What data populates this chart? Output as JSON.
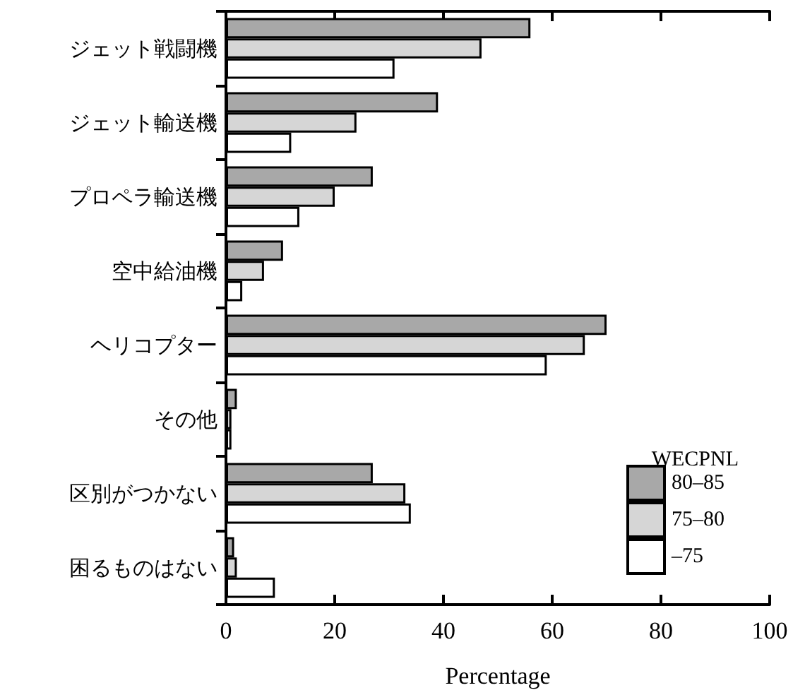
{
  "chart_data": {
    "type": "bar",
    "orientation": "horizontal",
    "xlabel": "Percentage",
    "legend_title": "WECPNL",
    "legend": "bottom right",
    "categories": [
      "ジェット戦闘機",
      "ジェット輸送機",
      "プロペラ輸送機",
      "空中給油機",
      "ヘリコプター",
      "その他",
      "区別がつかない",
      "困るものはない"
    ],
    "series": [
      {
        "name": "80–85",
        "color": "#a8a8a8",
        "values": [
          56,
          39,
          27,
          10.5,
          70,
          2,
          27,
          1.5
        ]
      },
      {
        "name": "75–80",
        "color": "#d6d6d6",
        "values": [
          47,
          24,
          20,
          7,
          66,
          1,
          33,
          2
        ]
      },
      {
        "name": "–75",
        "color": "#ffffff",
        "values": [
          31,
          12,
          13.5,
          3,
          59,
          1,
          34,
          9
        ]
      }
    ],
    "xlim": [
      0,
      100
    ],
    "xticks": [
      0,
      20,
      40,
      60,
      80,
      100
    ],
    "grid": false
  }
}
